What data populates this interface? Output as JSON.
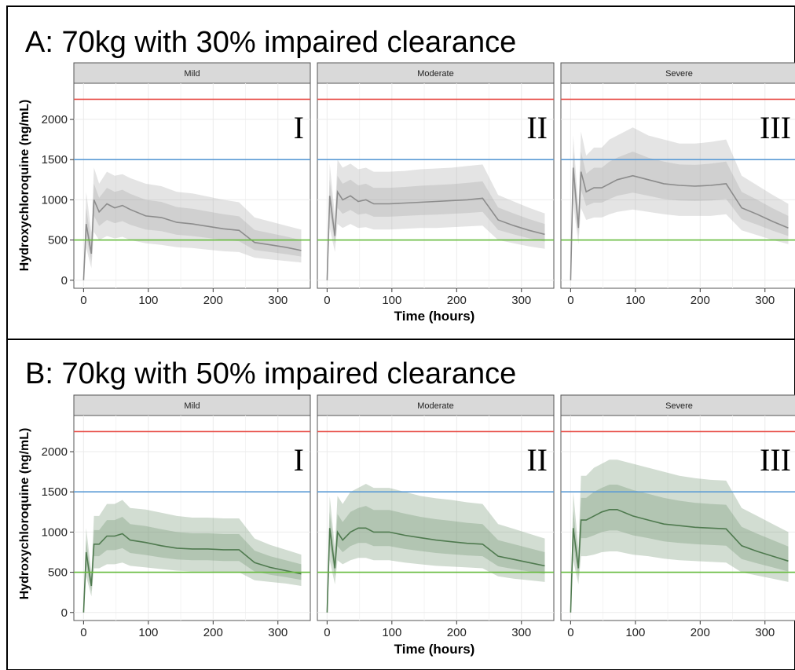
{
  "colors": {
    "red_line": "#e8504a",
    "blue_line": "#5b9bd5",
    "green_line": "#66bb3d",
    "grey_band": "#9e9e9e",
    "grey_line": "#8c8c8c",
    "green_band": "#6b8f6b",
    "green_series": "#4f7a4f",
    "strip_fill": "#d9d9d9",
    "grid": "#ebebeb"
  },
  "shared": {
    "ylabel": "Hydroxychloroquine (ng/mL)",
    "xlabel": "Time (hours)",
    "y_ticks": [
      "0",
      "500",
      "1000",
      "1500",
      "2000"
    ],
    "x_ticks": [
      "0",
      "100",
      "200",
      "300"
    ]
  },
  "rows": [
    {
      "title": "A: 70kg with 30% impaired clearance",
      "palette": "grey",
      "facets": [
        {
          "label": "Mild",
          "roman": "I"
        },
        {
          "label": "Moderate",
          "roman": "II"
        },
        {
          "label": "Severe",
          "roman": "III"
        }
      ]
    },
    {
      "title": "B: 70kg with 50% impaired clearance",
      "palette": "green",
      "facets": [
        {
          "label": "Mild",
          "roman": "I"
        },
        {
          "label": "Moderate",
          "roman": "II"
        },
        {
          "label": "Severe",
          "roman": "III"
        }
      ]
    }
  ],
  "chart_data": [
    {
      "type": "line",
      "title": "A: 70kg with 30% impaired clearance",
      "xlabel": "Time (hours)",
      "ylabel": "Hydroxychloroquine (ng/mL)",
      "xlim": [
        -15,
        350
      ],
      "ylim": [
        -100,
        2450
      ],
      "reference_lines": [
        {
          "y": 2250,
          "color": "red"
        },
        {
          "y": 1500,
          "color": "blue"
        },
        {
          "y": 500,
          "color": "green"
        }
      ],
      "facets": [
        "Mild",
        "Moderate",
        "Severe"
      ],
      "series": [
        {
          "facet": "Mild",
          "x": [
            0,
            4,
            12,
            16,
            24,
            36,
            48,
            60,
            72,
            96,
            120,
            144,
            168,
            192,
            216,
            240,
            264,
            288,
            312,
            336
          ],
          "median": [
            0,
            700,
            330,
            1000,
            850,
            950,
            900,
            930,
            880,
            800,
            780,
            720,
            700,
            670,
            640,
            620,
            470,
            440,
            410,
            370
          ],
          "lower": [
            0,
            400,
            150,
            600,
            500,
            550,
            520,
            540,
            500,
            460,
            440,
            410,
            400,
            380,
            360,
            350,
            280,
            260,
            240,
            220
          ],
          "upper": [
            0,
            1100,
            600,
            1400,
            1200,
            1350,
            1300,
            1320,
            1270,
            1200,
            1170,
            1100,
            1080,
            1040,
            1000,
            970,
            780,
            730,
            680,
            630
          ]
        },
        {
          "facet": "Moderate",
          "x": [
            0,
            4,
            12,
            16,
            24,
            36,
            48,
            60,
            72,
            96,
            120,
            144,
            168,
            192,
            216,
            240,
            264,
            288,
            312,
            336
          ],
          "median": [
            0,
            1050,
            550,
            1100,
            1000,
            1050,
            980,
            1000,
            950,
            950,
            960,
            970,
            980,
            990,
            1000,
            1020,
            750,
            680,
            620,
            570
          ],
          "lower": [
            0,
            650,
            350,
            700,
            650,
            700,
            650,
            660,
            630,
            630,
            640,
            650,
            650,
            660,
            670,
            680,
            500,
            460,
            420,
            390
          ],
          "upper": [
            0,
            1450,
            800,
            1500,
            1400,
            1450,
            1380,
            1400,
            1350,
            1350,
            1360,
            1380,
            1390,
            1400,
            1420,
            1440,
            1060,
            980,
            900,
            830
          ]
        },
        {
          "facet": "Severe",
          "x": [
            0,
            4,
            12,
            16,
            24,
            36,
            48,
            60,
            72,
            96,
            120,
            144,
            168,
            192,
            216,
            240,
            264,
            288,
            312,
            336
          ],
          "median": [
            0,
            1400,
            650,
            1350,
            1100,
            1150,
            1150,
            1200,
            1250,
            1300,
            1250,
            1200,
            1180,
            1170,
            1180,
            1200,
            900,
            820,
            730,
            650
          ],
          "lower": [
            0,
            950,
            450,
            900,
            750,
            780,
            780,
            820,
            850,
            880,
            850,
            820,
            800,
            800,
            800,
            820,
            620,
            560,
            500,
            450
          ],
          "upper": [
            0,
            1800,
            900,
            1850,
            1550,
            1650,
            1650,
            1750,
            1800,
            1900,
            1800,
            1750,
            1700,
            1700,
            1720,
            1750,
            1300,
            1180,
            1060,
            950
          ]
        }
      ]
    },
    {
      "type": "line",
      "title": "B: 70kg with 50% impaired clearance",
      "xlabel": "Time (hours)",
      "ylabel": "Hydroxychloroquine (ng/mL)",
      "xlim": [
        -15,
        350
      ],
      "ylim": [
        -100,
        2450
      ],
      "reference_lines": [
        {
          "y": 2250,
          "color": "red"
        },
        {
          "y": 1500,
          "color": "blue"
        },
        {
          "y": 500,
          "color": "green"
        }
      ],
      "facets": [
        "Mild",
        "Moderate",
        "Severe"
      ],
      "series": [
        {
          "facet": "Mild",
          "x": [
            0,
            4,
            12,
            16,
            24,
            36,
            48,
            60,
            72,
            96,
            120,
            144,
            168,
            192,
            216,
            240,
            264,
            288,
            312,
            336
          ],
          "median": [
            0,
            750,
            330,
            850,
            850,
            950,
            950,
            980,
            900,
            870,
            830,
            800,
            790,
            790,
            780,
            780,
            620,
            560,
            520,
            480
          ],
          "lower": [
            0,
            450,
            200,
            550,
            550,
            600,
            600,
            620,
            580,
            560,
            540,
            520,
            510,
            510,
            500,
            500,
            400,
            380,
            360,
            330
          ],
          "upper": [
            0,
            1050,
            500,
            1200,
            1200,
            1350,
            1350,
            1400,
            1300,
            1280,
            1240,
            1200,
            1180,
            1180,
            1170,
            1170,
            920,
            840,
            780,
            720
          ]
        },
        {
          "facet": "Moderate",
          "x": [
            0,
            4,
            12,
            16,
            24,
            36,
            48,
            60,
            72,
            96,
            120,
            144,
            168,
            192,
            216,
            240,
            264,
            288,
            312,
            336
          ],
          "median": [
            0,
            1050,
            550,
            1000,
            900,
            1000,
            1050,
            1050,
            1000,
            1000,
            960,
            930,
            900,
            880,
            860,
            850,
            700,
            660,
            620,
            580
          ],
          "lower": [
            0,
            650,
            350,
            650,
            600,
            650,
            680,
            680,
            650,
            650,
            620,
            600,
            580,
            570,
            560,
            550,
            450,
            420,
            400,
            380
          ],
          "upper": [
            0,
            1450,
            800,
            1450,
            1350,
            1500,
            1550,
            1600,
            1550,
            1550,
            1500,
            1450,
            1420,
            1400,
            1370,
            1350,
            1100,
            1040,
            980,
            920
          ]
        },
        {
          "facet": "Severe",
          "x": [
            0,
            4,
            12,
            16,
            24,
            36,
            48,
            60,
            72,
            96,
            120,
            144,
            168,
            192,
            216,
            240,
            264,
            288,
            312,
            336
          ],
          "median": [
            0,
            1050,
            550,
            1150,
            1150,
            1200,
            1250,
            1280,
            1280,
            1200,
            1150,
            1100,
            1080,
            1060,
            1050,
            1040,
            830,
            760,
            700,
            640
          ],
          "lower": [
            0,
            650,
            350,
            700,
            700,
            720,
            750,
            760,
            760,
            720,
            700,
            670,
            650,
            640,
            630,
            620,
            500,
            460,
            420,
            380
          ],
          "upper": [
            0,
            1500,
            800,
            1700,
            1700,
            1800,
            1850,
            1900,
            1900,
            1850,
            1800,
            1750,
            1700,
            1670,
            1650,
            1640,
            1300,
            1200,
            1100,
            1000
          ]
        }
      ]
    }
  ]
}
